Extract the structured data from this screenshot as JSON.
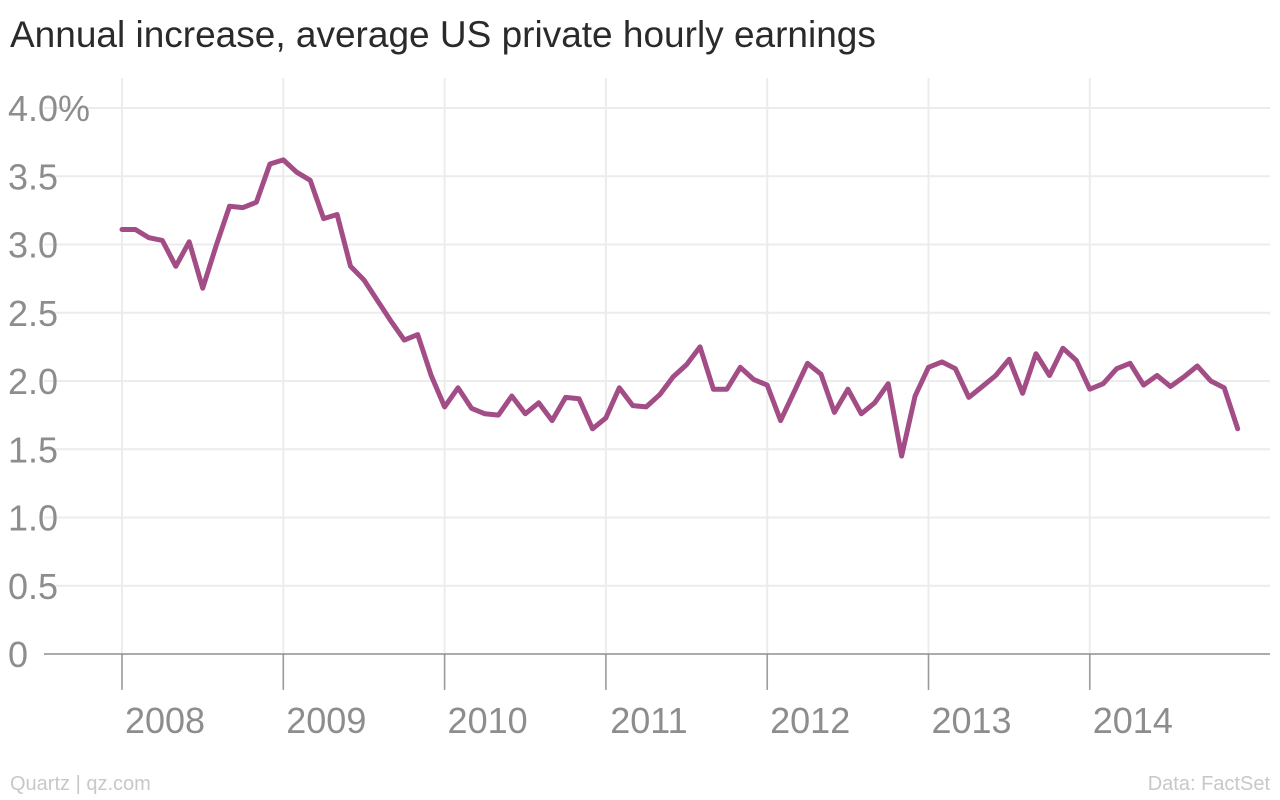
{
  "chart_data": {
    "type": "line",
    "title": "Annual increase, average US private hourly earnings",
    "xlabel": "",
    "ylabel": "",
    "ylim": [
      0,
      4.0
    ],
    "y_ticks": [
      {
        "value": 0,
        "label": "0"
      },
      {
        "value": 0.5,
        "label": "0.5"
      },
      {
        "value": 1.0,
        "label": "1.0"
      },
      {
        "value": 1.5,
        "label": "1.5"
      },
      {
        "value": 2.0,
        "label": "2.0"
      },
      {
        "value": 2.5,
        "label": "2.5"
      },
      {
        "value": 3.0,
        "label": "3.0"
      },
      {
        "value": 3.5,
        "label": "3.5"
      },
      {
        "value": 4.0,
        "label": "4.0%"
      }
    ],
    "x_ticks": [
      "2008",
      "2009",
      "2010",
      "2011",
      "2012",
      "2013",
      "2014"
    ],
    "grid": true,
    "series": [
      {
        "color": "#a34d87",
        "x": [
          "2008-01",
          "2008-02",
          "2008-03",
          "2008-04",
          "2008-05",
          "2008-06",
          "2008-07",
          "2008-08",
          "2008-09",
          "2008-10",
          "2008-11",
          "2008-12",
          "2009-01",
          "2009-02",
          "2009-03",
          "2009-04",
          "2009-05",
          "2009-06",
          "2009-07",
          "2009-08",
          "2009-09",
          "2009-10",
          "2009-11",
          "2009-12",
          "2010-01",
          "2010-02",
          "2010-03",
          "2010-04",
          "2010-05",
          "2010-06",
          "2010-07",
          "2010-08",
          "2010-09",
          "2010-10",
          "2010-11",
          "2010-12",
          "2011-01",
          "2011-02",
          "2011-03",
          "2011-04",
          "2011-05",
          "2011-06",
          "2011-07",
          "2011-08",
          "2011-09",
          "2011-10",
          "2011-11",
          "2011-12",
          "2012-01",
          "2012-02",
          "2012-03",
          "2012-04",
          "2012-05",
          "2012-06",
          "2012-07",
          "2012-08",
          "2012-09",
          "2012-10",
          "2012-11",
          "2012-12",
          "2013-01",
          "2013-02",
          "2013-03",
          "2013-04",
          "2013-05",
          "2013-06",
          "2013-07",
          "2013-08",
          "2013-09",
          "2013-10",
          "2013-11",
          "2013-12",
          "2014-01",
          "2014-02",
          "2014-03",
          "2014-04",
          "2014-05",
          "2014-06",
          "2014-07",
          "2014-08",
          "2014-09",
          "2014-10",
          "2014-11",
          "2014-12"
        ],
        "values": [
          3.11,
          3.11,
          3.05,
          3.03,
          2.84,
          3.02,
          2.68,
          2.99,
          3.28,
          3.27,
          3.31,
          3.59,
          3.62,
          3.53,
          3.47,
          3.19,
          3.22,
          2.84,
          2.74,
          2.59,
          2.44,
          2.3,
          2.34,
          2.04,
          1.81,
          1.95,
          1.8,
          1.76,
          1.75,
          1.89,
          1.76,
          1.84,
          1.71,
          1.88,
          1.87,
          1.65,
          1.73,
          1.95,
          1.82,
          1.81,
          1.9,
          2.03,
          2.12,
          2.25,
          1.94,
          1.94,
          2.1,
          2.01,
          1.97,
          1.71,
          1.92,
          2.13,
          2.05,
          1.77,
          1.94,
          1.76,
          1.84,
          1.98,
          1.45,
          1.89,
          2.1,
          2.14,
          2.09,
          1.88,
          1.96,
          2.04,
          2.16,
          1.91,
          2.2,
          2.04,
          2.24,
          2.15,
          1.94,
          1.98,
          2.09,
          2.13,
          1.97,
          2.04,
          1.96,
          2.03,
          2.11,
          2.0,
          1.95,
          1.65
        ]
      }
    ]
  },
  "footer": {
    "source_left": "Quartz | qz.com",
    "source_right": "Data: FactSet"
  }
}
